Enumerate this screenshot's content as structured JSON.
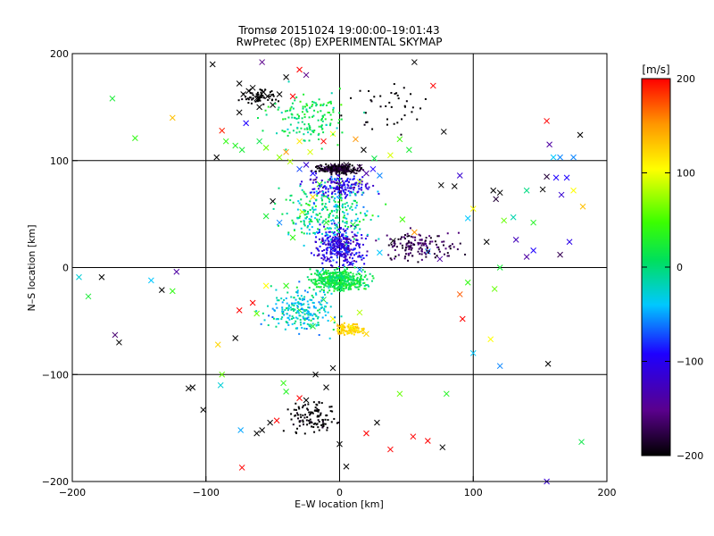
{
  "chart_data": {
    "type": "scatter",
    "title": "Tromsø 20151024 19:00:00–19:01:43",
    "subtitle": "RwPretec (8p) EXPERIMENTAL SKYMAP",
    "xlabel": "E–W location [km]",
    "ylabel": "N–S location [km]",
    "xlim": [
      -200,
      200
    ],
    "ylim": [
      -200,
      200
    ],
    "xticks": [
      -200,
      -100,
      0,
      100,
      200
    ],
    "yticks": [
      -200,
      -100,
      0,
      100,
      200
    ],
    "grid": true,
    "colorbar": {
      "label": "[m/s]",
      "min": -200,
      "max": 200,
      "ticks": [
        200,
        100,
        0,
        -100,
        -200
      ],
      "colormap": "black-purple-blue-cyan-green-yellow-orange-red"
    },
    "marker_legend": "cross = large markers, dot = small markers",
    "points": [
      [
        -170,
        158,
        20,
        "x"
      ],
      [
        -153,
        121,
        40,
        "x"
      ],
      [
        -125,
        140,
        130,
        "x"
      ],
      [
        -95,
        190,
        -200,
        "x"
      ],
      [
        -92,
        103,
        -200,
        "x"
      ],
      [
        -88,
        128,
        190,
        "x"
      ],
      [
        -75,
        172,
        -200,
        "x"
      ],
      [
        -72,
        162,
        -200,
        "x"
      ],
      [
        -68,
        165,
        -200,
        "x"
      ],
      [
        -65,
        168,
        -200,
        "x"
      ],
      [
        -62,
        158,
        -200,
        "x"
      ],
      [
        -60,
        150,
        -200,
        "x"
      ],
      [
        -57,
        164,
        -200,
        "x"
      ],
      [
        -54,
        160,
        -200,
        "x"
      ],
      [
        -50,
        152,
        -200,
        "x"
      ],
      [
        -45,
        162,
        -200,
        "x"
      ],
      [
        -40,
        178,
        -200,
        "x"
      ],
      [
        -35,
        160,
        200,
        "x"
      ],
      [
        -30,
        185,
        200,
        "x"
      ],
      [
        -25,
        180,
        -150,
        "x"
      ],
      [
        -58,
        192,
        -150,
        "x"
      ],
      [
        -75,
        145,
        -200,
        "x"
      ],
      [
        -70,
        135,
        -100,
        "x"
      ],
      [
        -85,
        118,
        40,
        "x"
      ],
      [
        -78,
        114,
        30,
        "x"
      ],
      [
        -73,
        110,
        20,
        "x"
      ],
      [
        -60,
        118,
        10,
        "x"
      ],
      [
        -55,
        112,
        60,
        "x"
      ],
      [
        -45,
        103,
        70,
        "x"
      ],
      [
        -40,
        108,
        150,
        "x"
      ],
      [
        -37,
        99,
        80,
        "x"
      ],
      [
        -30,
        118,
        110,
        "x"
      ],
      [
        -22,
        108,
        90,
        "x"
      ],
      [
        -12,
        118,
        200,
        "x"
      ],
      [
        -5,
        125,
        100,
        "x"
      ],
      [
        12,
        120,
        150,
        "x"
      ],
      [
        18,
        110,
        -200,
        "x"
      ],
      [
        26,
        102,
        10,
        "x"
      ],
      [
        38,
        105,
        90,
        "x"
      ],
      [
        45,
        120,
        50,
        "x"
      ],
      [
        52,
        110,
        20,
        "x"
      ],
      [
        56,
        192,
        -200,
        "x"
      ],
      [
        70,
        170,
        200,
        "x"
      ],
      [
        78,
        127,
        -200,
        "x"
      ],
      [
        86,
        76,
        -200,
        "x"
      ],
      [
        90,
        86,
        -120,
        "x"
      ],
      [
        76,
        77,
        -200,
        "x"
      ],
      [
        96,
        46,
        -40,
        "x"
      ],
      [
        100,
        55,
        100,
        "x"
      ],
      [
        110,
        24,
        -200,
        "x"
      ],
      [
        123,
        44,
        60,
        "x"
      ],
      [
        115,
        72,
        -200,
        "x"
      ],
      [
        117,
        64,
        -180,
        "x"
      ],
      [
        120,
        70,
        -200,
        "x"
      ],
      [
        130,
        47,
        -20,
        "x"
      ],
      [
        140,
        72,
        -10,
        "x"
      ],
      [
        145,
        42,
        30,
        "x"
      ],
      [
        152,
        73,
        -200,
        "x"
      ],
      [
        155,
        85,
        -180,
        "x"
      ],
      [
        162,
        84,
        -100,
        "x"
      ],
      [
        170,
        84,
        -100,
        "x"
      ],
      [
        166,
        68,
        -120,
        "x"
      ],
      [
        175,
        72,
        100,
        "x"
      ],
      [
        180,
        124,
        -200,
        "x"
      ],
      [
        155,
        137,
        200,
        "x"
      ],
      [
        157,
        115,
        -140,
        "x"
      ],
      [
        160,
        103,
        -40,
        "x"
      ],
      [
        165,
        103,
        -60,
        "x"
      ],
      [
        175,
        103,
        -60,
        "x"
      ],
      [
        172,
        24,
        -110,
        "x"
      ],
      [
        165,
        12,
        -170,
        "x"
      ],
      [
        182,
        57,
        130,
        "x"
      ],
      [
        132,
        26,
        -130,
        "x"
      ],
      [
        140,
        10,
        -140,
        "x"
      ],
      [
        145,
        16,
        -100,
        "x"
      ],
      [
        120,
        0,
        20,
        "x"
      ],
      [
        116,
        -20,
        60,
        "x"
      ],
      [
        96,
        -14,
        40,
        "x"
      ],
      [
        92,
        -48,
        200,
        "x"
      ],
      [
        100,
        -80,
        -40,
        "x"
      ],
      [
        113,
        -67,
        100,
        "x"
      ],
      [
        120,
        -92,
        -60,
        "x"
      ],
      [
        90,
        -25,
        170,
        "x"
      ],
      [
        156,
        -90,
        -200,
        "x"
      ],
      [
        155,
        -200,
        -120,
        "x"
      ],
      [
        181,
        -163,
        10,
        "x"
      ],
      [
        -188,
        -27,
        20,
        "x"
      ],
      [
        -195,
        -9,
        -30,
        "x"
      ],
      [
        -178,
        -9,
        -200,
        "x"
      ],
      [
        -168,
        -63,
        -160,
        "x"
      ],
      [
        -141,
        -12,
        -40,
        "x"
      ],
      [
        -133,
        -21,
        -200,
        "x"
      ],
      [
        -125,
        -22,
        40,
        "x"
      ],
      [
        -122,
        -4,
        -140,
        "x"
      ],
      [
        -113,
        -113,
        -200,
        "x"
      ],
      [
        -110,
        -112,
        -200,
        "x"
      ],
      [
        -102,
        -133,
        -200,
        "x"
      ],
      [
        -91,
        -72,
        120,
        "x"
      ],
      [
        -78,
        -66,
        -200,
        "x"
      ],
      [
        -88,
        -100,
        60,
        "x"
      ],
      [
        -89,
        -110,
        -30,
        "x"
      ],
      [
        -74,
        -152,
        -50,
        "x"
      ],
      [
        -73,
        -187,
        200,
        "x"
      ],
      [
        -62,
        -155,
        -200,
        "x"
      ],
      [
        -58,
        -152,
        -200,
        "x"
      ],
      [
        -52,
        -145,
        -200,
        "x"
      ],
      [
        -47,
        -143,
        200,
        "x"
      ],
      [
        -42,
        -108,
        40,
        "x"
      ],
      [
        -40,
        -116,
        30,
        "x"
      ],
      [
        -30,
        -122,
        200,
        "x"
      ],
      [
        -25,
        -124,
        -200,
        "x"
      ],
      [
        -18,
        -100,
        -200,
        "x"
      ],
      [
        -10,
        -112,
        -200,
        "x"
      ],
      [
        -5,
        -94,
        -200,
        "x"
      ],
      [
        0,
        -165,
        -200,
        "x"
      ],
      [
        5,
        -186,
        -200,
        "x"
      ],
      [
        20,
        -155,
        200,
        "x"
      ],
      [
        28,
        -145,
        -200,
        "x"
      ],
      [
        38,
        -170,
        200,
        "x"
      ],
      [
        45,
        -118,
        60,
        "x"
      ],
      [
        55,
        -158,
        200,
        "x"
      ],
      [
        66,
        -162,
        200,
        "x"
      ],
      [
        77,
        -168,
        -200,
        "x"
      ],
      [
        80,
        -118,
        30,
        "x"
      ],
      [
        -75,
        -40,
        200,
        "x"
      ],
      [
        -65,
        -33,
        200,
        "x"
      ],
      [
        -55,
        -17,
        100,
        "x"
      ],
      [
        -62,
        -43,
        60,
        "x"
      ],
      [
        -40,
        -17,
        40,
        "x"
      ],
      [
        -30,
        -40,
        20,
        "x"
      ],
      [
        -20,
        -55,
        20,
        "x"
      ],
      [
        -12,
        -30,
        10,
        "x"
      ],
      [
        -50,
        62,
        -200,
        "x"
      ],
      [
        -55,
        48,
        20,
        "x"
      ],
      [
        -45,
        42,
        -60,
        "x"
      ],
      [
        -28,
        52,
        80,
        "x"
      ],
      [
        -20,
        66,
        120,
        "x"
      ],
      [
        -35,
        28,
        40,
        "x"
      ],
      [
        -10,
        42,
        30,
        "x"
      ],
      [
        10,
        40,
        20,
        "x"
      ],
      [
        30,
        14,
        -40,
        "x"
      ],
      [
        40,
        25,
        -200,
        "x"
      ],
      [
        47,
        45,
        50,
        "x"
      ],
      [
        56,
        33,
        150,
        "x"
      ],
      [
        66,
        15,
        -60,
        "x"
      ],
      [
        75,
        8,
        -140,
        "x"
      ],
      [
        -165,
        -70,
        -200,
        "x"
      ],
      [
        -10,
        92,
        -140,
        "x"
      ],
      [
        -5,
        95,
        -180,
        "x"
      ],
      [
        0,
        92,
        -200,
        "x"
      ],
      [
        5,
        96,
        -190,
        "x"
      ],
      [
        10,
        90,
        -200,
        "x"
      ],
      [
        15,
        94,
        -170,
        "x"
      ],
      [
        -20,
        88,
        -100,
        "x"
      ],
      [
        -25,
        96,
        -120,
        "x"
      ],
      [
        -30,
        92,
        -80,
        "x"
      ],
      [
        20,
        88,
        -140,
        "x"
      ],
      [
        25,
        92,
        -100,
        "x"
      ],
      [
        30,
        86,
        -60,
        "x"
      ],
      [
        -15,
        78,
        40,
        "x"
      ],
      [
        0,
        78,
        60,
        "x"
      ],
      [
        15,
        80,
        80,
        "x"
      ],
      [
        -5,
        18,
        -160,
        "x"
      ],
      [
        5,
        22,
        -180,
        "x"
      ],
      [
        0,
        28,
        -140,
        "x"
      ],
      [
        -8,
        8,
        -120,
        "x"
      ],
      [
        8,
        4,
        -100,
        "x"
      ],
      [
        0,
        -10,
        20,
        "x"
      ],
      [
        -10,
        -14,
        40,
        "x"
      ],
      [
        10,
        -16,
        60,
        "x"
      ],
      [
        -15,
        -5,
        -40,
        "x"
      ],
      [
        15,
        -2,
        -60,
        "x"
      ],
      [
        0,
        -55,
        140,
        "x"
      ],
      [
        10,
        -58,
        160,
        "x"
      ],
      [
        20,
        -62,
        120,
        "x"
      ],
      [
        -5,
        -48,
        100,
        "x"
      ],
      [
        15,
        -42,
        80,
        "x"
      ]
    ]
  }
}
